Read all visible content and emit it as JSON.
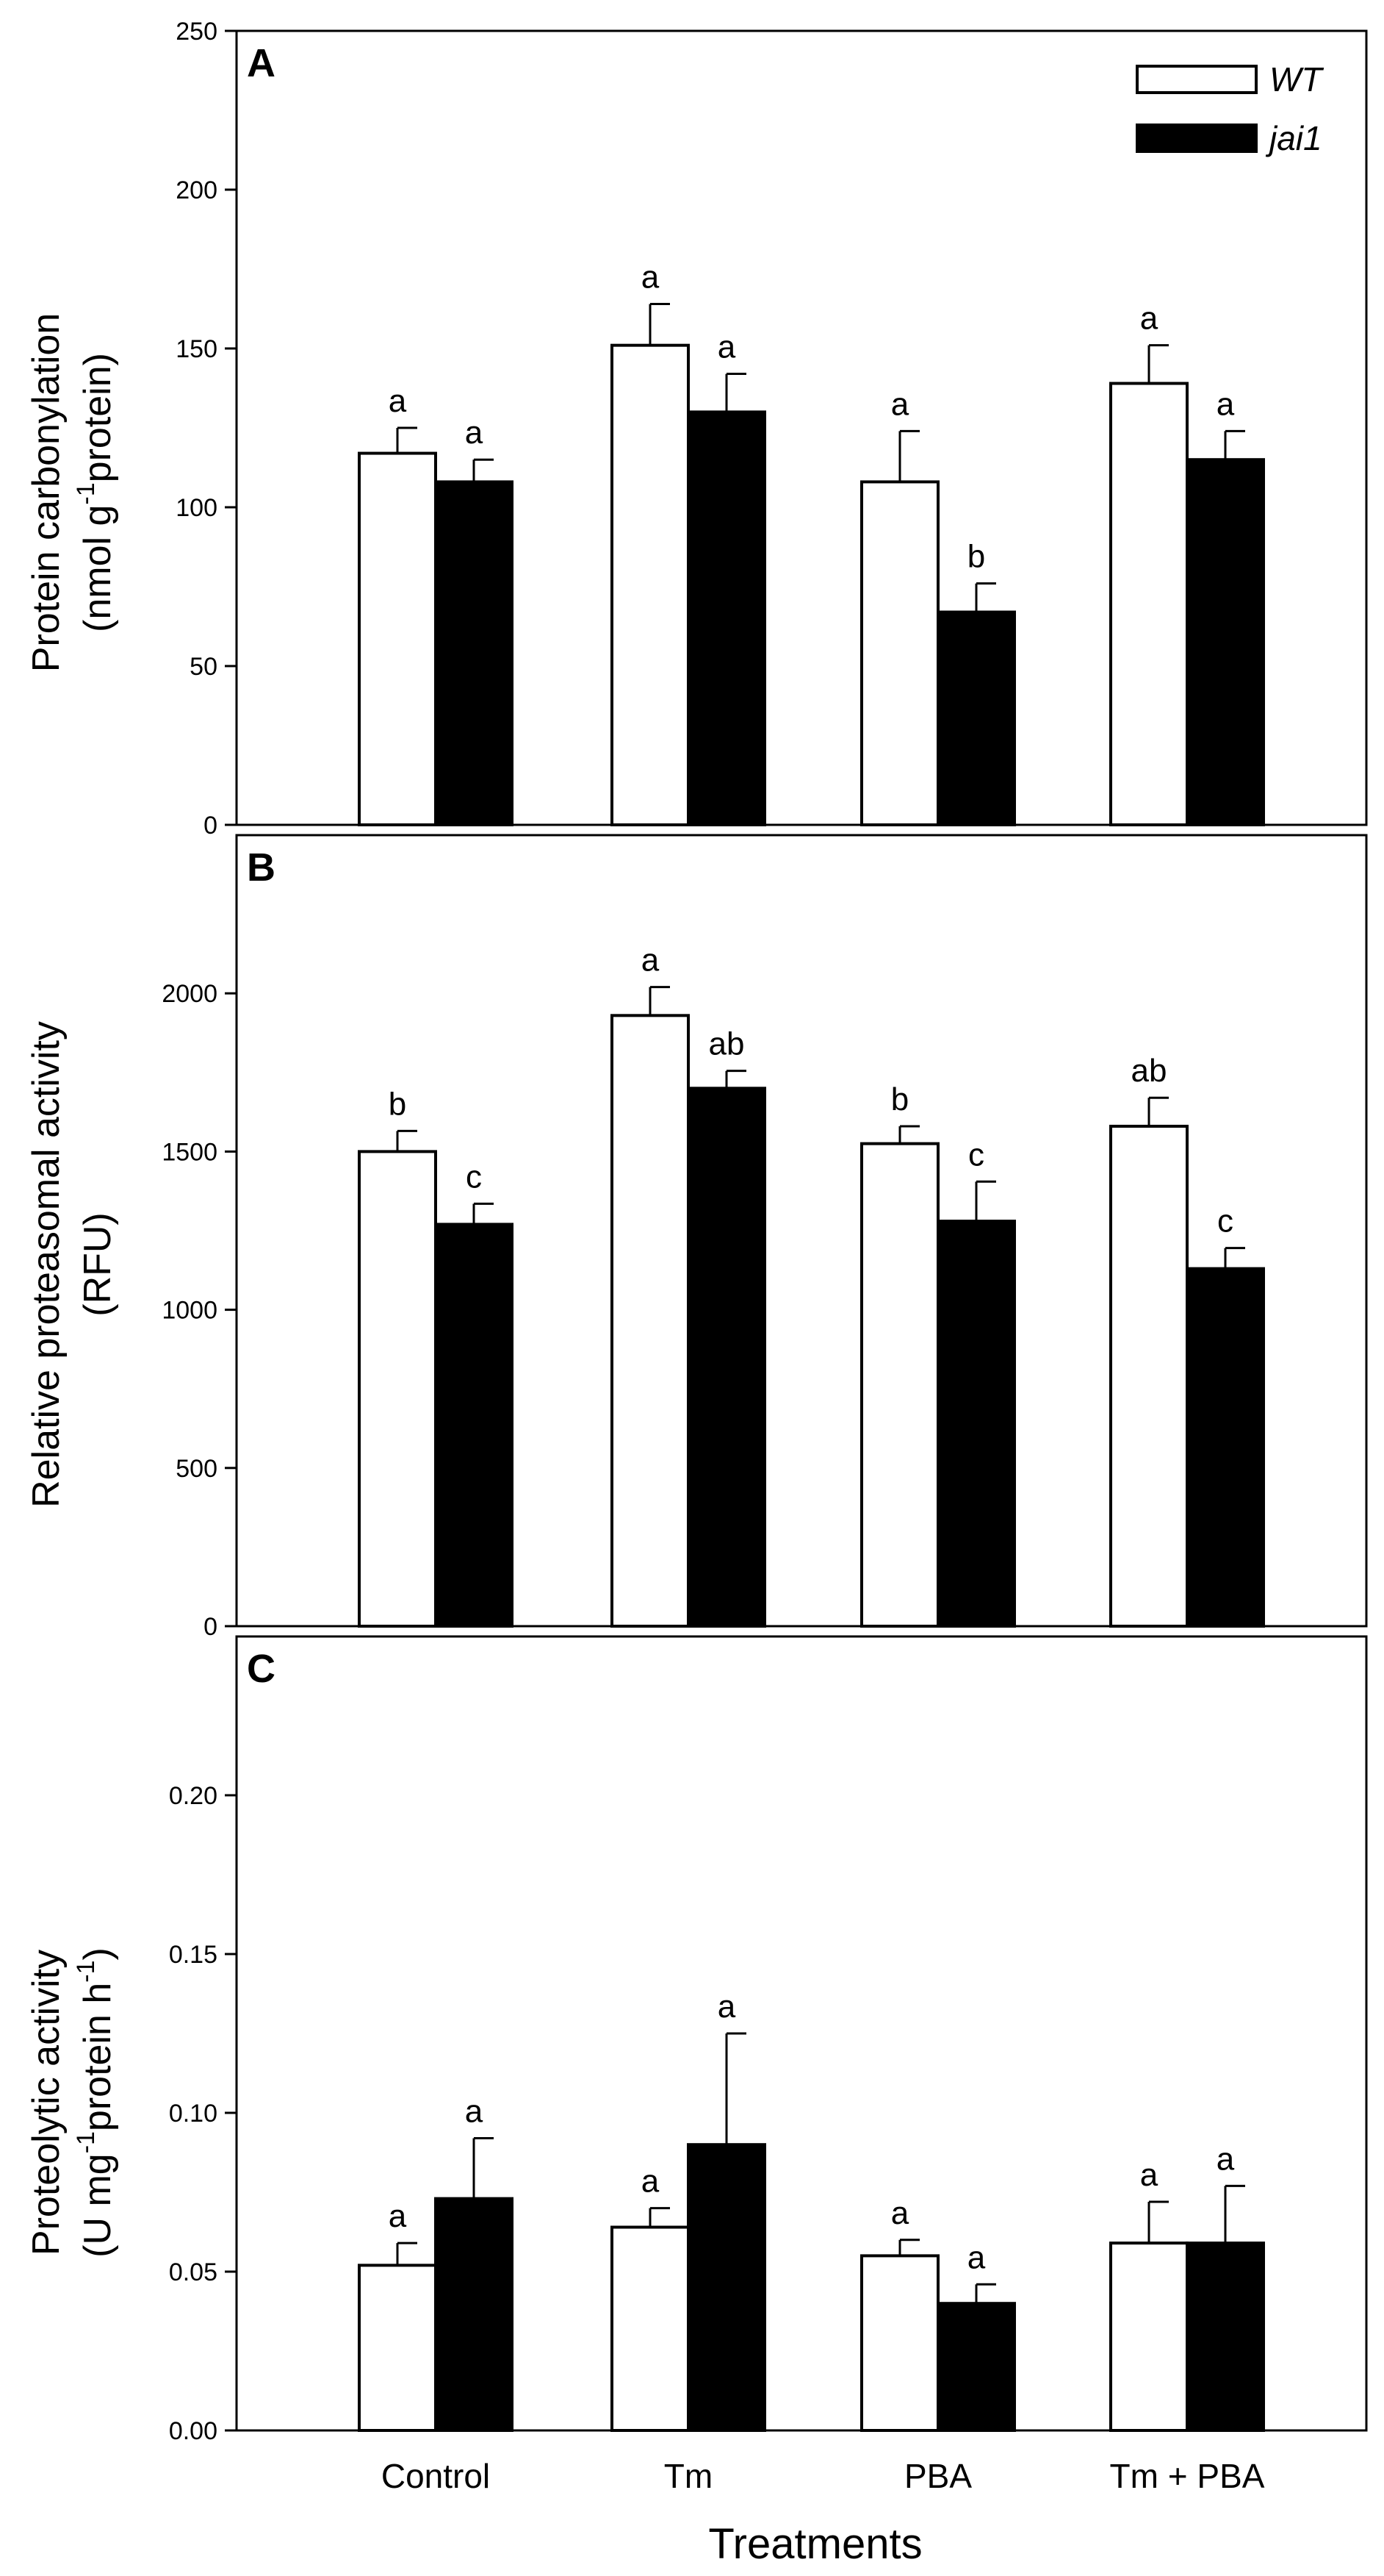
{
  "colors": {
    "wt": "#ffffff",
    "jai1": "#000000",
    "stroke": "#000000"
  },
  "legend": {
    "wt": "WT",
    "jai1": "jai1"
  },
  "xlabel": "Treatments",
  "categories": [
    "Control",
    "Tm",
    "PBA",
    "Tm + PBA"
  ],
  "chart_data": [
    {
      "type": "bar",
      "panel": "A",
      "ylabel_line1": "Protein carbonylation",
      "ylabel_line2": "(nmol g-1protein)",
      "ylabel_line2_parts": {
        "pre": "(nmol g",
        "sup": "-1",
        "post": "protein)"
      },
      "ylim": [
        0,
        250
      ],
      "yticks": [
        "0",
        "50",
        "100",
        "150",
        "200",
        "250"
      ],
      "categories": [
        "Control",
        "Tm",
        "PBA",
        "Tm + PBA"
      ],
      "series": [
        {
          "name": "WT",
          "values": [
            117,
            151,
            108,
            139
          ],
          "errors": [
            8,
            13,
            16,
            12
          ],
          "labels": [
            "a",
            "a",
            "a",
            "a"
          ]
        },
        {
          "name": "jai1",
          "values": [
            108,
            130,
            67,
            115
          ],
          "errors": [
            7,
            12,
            9,
            9
          ],
          "labels": [
            "a",
            "a",
            "b",
            "a"
          ]
        }
      ]
    },
    {
      "type": "bar",
      "panel": "B",
      "ylabel_line1": "Relative proteasomal activity",
      "ylabel_line2": "(RFU)",
      "ylim": [
        0,
        2500
      ],
      "yticks": [
        "0",
        "500",
        "1000",
        "1500",
        "2000"
      ],
      "categories": [
        "Control",
        "Tm",
        "PBA",
        "Tm + PBA"
      ],
      "series": [
        {
          "name": "WT",
          "values": [
            1500,
            1930,
            1525,
            1580
          ],
          "errors": [
            65,
            90,
            55,
            90
          ],
          "labels": [
            "b",
            "a",
            "b",
            "ab"
          ]
        },
        {
          "name": "jai1",
          "values": [
            1270,
            1700,
            1280,
            1130
          ],
          "errors": [
            65,
            55,
            125,
            65
          ],
          "labels": [
            "c",
            "ab",
            "c",
            "c"
          ]
        }
      ]
    },
    {
      "type": "bar",
      "panel": "C",
      "ylabel_line1": "Proteolytic activity",
      "ylabel_line2": "(U mg-1protein h-1)",
      "ylabel_line2_parts": {
        "pre": "(U mg",
        "sup": "-1",
        "mid": "protein h",
        "sup2": "-1",
        "post": ")"
      },
      "ylim": [
        0,
        0.25
      ],
      "yticks": [
        "0.00",
        "0.05",
        "0.10",
        "0.15",
        "0.20"
      ],
      "categories": [
        "Control",
        "Tm",
        "PBA",
        "Tm + PBA"
      ],
      "series": [
        {
          "name": "WT",
          "values": [
            0.052,
            0.064,
            0.055,
            0.059
          ],
          "errors": [
            0.007,
            0.006,
            0.005,
            0.013
          ],
          "labels": [
            "a",
            "a",
            "a",
            "a"
          ]
        },
        {
          "name": "jai1",
          "values": [
            0.073,
            0.09,
            0.04,
            0.059
          ],
          "errors": [
            0.019,
            0.035,
            0.006,
            0.018
          ],
          "labels": [
            "a",
            "a",
            "a",
            "a"
          ]
        }
      ]
    }
  ]
}
